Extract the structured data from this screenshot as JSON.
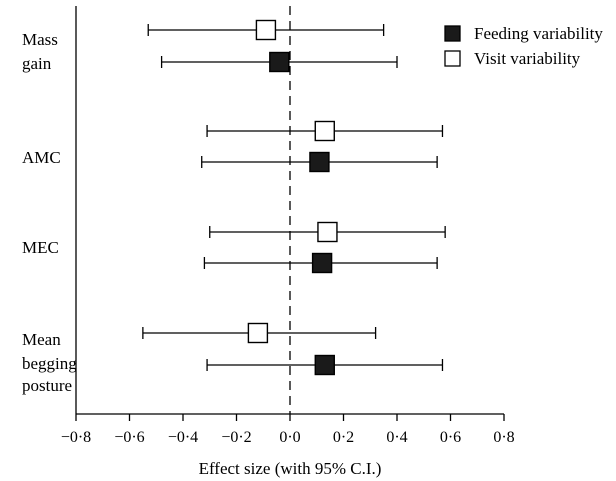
{
  "chart_data": {
    "type": "scatter",
    "title": "",
    "xlabel": "Effect size (with 95% C.I.)",
    "ylabel": "",
    "xlim": [
      -0.8,
      0.8
    ],
    "xticks": [
      -0.8,
      -0.6,
      -0.4,
      -0.2,
      0.0,
      0.2,
      0.4,
      0.6,
      0.8
    ],
    "xtick_labels": [
      "−0·8",
      "−0·6",
      "−0·4",
      "−0·2",
      "0·0",
      "0·2",
      "0·4",
      "0·6",
      "0·8"
    ],
    "reference_line": {
      "x": 0.0,
      "style": "dashed"
    },
    "legend_position": "top-right",
    "grid": false,
    "categories": [
      {
        "key": "mass-gain",
        "lines": [
          "Mass",
          "gain"
        ]
      },
      {
        "key": "amc",
        "lines": [
          "AMC"
        ]
      },
      {
        "key": "mec",
        "lines": [
          "MEC"
        ]
      },
      {
        "key": "mean-begging-posture",
        "lines": [
          "Mean",
          "begging",
          "posture"
        ]
      }
    ],
    "series": [
      {
        "name": "Feeding variability",
        "key": "feeding",
        "marker": "filled-square",
        "color": "#1a1a1a",
        "points": [
          {
            "category": "mass-gain",
            "estimate": -0.04,
            "ci": [
              -0.48,
              0.4
            ]
          },
          {
            "category": "amc",
            "estimate": 0.11,
            "ci": [
              -0.33,
              0.55
            ]
          },
          {
            "category": "mec",
            "estimate": 0.12,
            "ci": [
              -0.32,
              0.55
            ]
          },
          {
            "category": "mean-begging-posture",
            "estimate": 0.13,
            "ci": [
              -0.31,
              0.57
            ]
          }
        ]
      },
      {
        "name": "Visit variability",
        "key": "visit",
        "marker": "open-square",
        "color": "#ffffff",
        "points": [
          {
            "category": "mass-gain",
            "estimate": -0.09,
            "ci": [
              -0.53,
              0.35
            ]
          },
          {
            "category": "amc",
            "estimate": 0.13,
            "ci": [
              -0.31,
              0.57
            ]
          },
          {
            "category": "mec",
            "estimate": 0.14,
            "ci": [
              -0.3,
              0.58
            ]
          },
          {
            "category": "mean-begging-posture",
            "estimate": -0.12,
            "ci": [
              -0.55,
              0.32
            ]
          }
        ]
      }
    ]
  }
}
